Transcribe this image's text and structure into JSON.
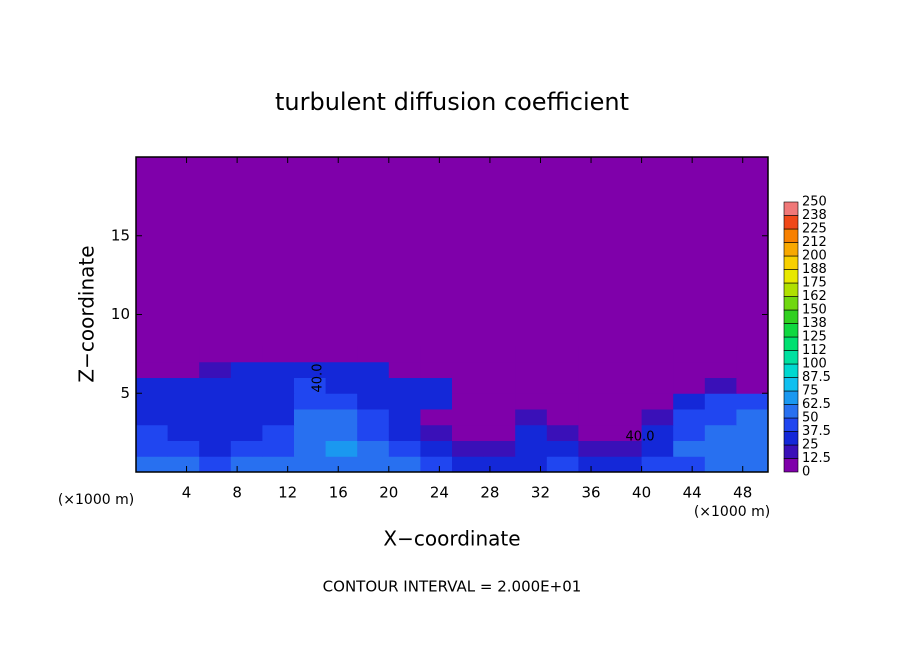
{
  "chart_data": {
    "type": "contour",
    "title": "turbulent diffusion coefficient",
    "xlabel": "X−coordinate",
    "ylabel": "Z−coordinate",
    "x_unit": "(×1000 m)",
    "footer": "CONTOUR INTERVAL = 2.000E+01",
    "xlim": [
      0,
      50
    ],
    "ylim": [
      0,
      20
    ],
    "xticks": [
      4,
      8,
      12,
      16,
      20,
      24,
      28,
      32,
      36,
      40,
      44,
      48
    ],
    "yticks": [
      5,
      10,
      15
    ],
    "x": [
      1.25,
      3.75,
      6.25,
      8.75,
      11.25,
      13.75,
      16.25,
      18.75,
      21.25,
      23.75,
      26.25,
      28.75,
      31.25,
      33.75,
      36.25,
      38.75,
      41.25,
      43.75,
      46.25,
      48.75
    ],
    "y": [
      0.5,
      1.5,
      2.5,
      3.5,
      4.5,
      5.5,
      6.5,
      7.5
    ],
    "z": [
      [
        55,
        50,
        45,
        50,
        55,
        60,
        60,
        55,
        50,
        45,
        35,
        30,
        35,
        40,
        30,
        30,
        40,
        45,
        55,
        60
      ],
      [
        45,
        40,
        35,
        40,
        45,
        60,
        65,
        50,
        40,
        30,
        20,
        15,
        30,
        35,
        20,
        15,
        35,
        50,
        55,
        60
      ],
      [
        40,
        35,
        30,
        35,
        40,
        55,
        60,
        45,
        35,
        15,
        5,
        5,
        25,
        15,
        5,
        5,
        25,
        45,
        50,
        55
      ],
      [
        35,
        30,
        30,
        30,
        35,
        50,
        55,
        40,
        30,
        5,
        5,
        5,
        15,
        5,
        5,
        5,
        15,
        40,
        45,
        50
      ],
      [
        35,
        30,
        30,
        30,
        35,
        45,
        45,
        35,
        30,
        25,
        5,
        5,
        5,
        5,
        5,
        5,
        5,
        30,
        40,
        45
      ],
      [
        25,
        30,
        30,
        30,
        35,
        40,
        35,
        30,
        30,
        25,
        5,
        5,
        5,
        5,
        5,
        5,
        5,
        5,
        15,
        5
      ],
      [
        5,
        5,
        15,
        25,
        30,
        35,
        30,
        30,
        5,
        5,
        5,
        5,
        5,
        5,
        5,
        5,
        5,
        5,
        5,
        5
      ],
      [
        5,
        5,
        5,
        5,
        5,
        10,
        5,
        5,
        5,
        5,
        5,
        5,
        5,
        5,
        5,
        5,
        5,
        5,
        5,
        5
      ]
    ],
    "levels": [
      0,
      12.5,
      25,
      37.5,
      50,
      62.5,
      75,
      87.5,
      100,
      112,
      125,
      138,
      150,
      162,
      175,
      188,
      200,
      212,
      225,
      238,
      250
    ],
    "colors": [
      "#7f00aa",
      "#3a10b8",
      "#1428d8",
      "#2046f0",
      "#2870f0",
      "#1a98f0",
      "#10c0f0",
      "#00d8d0",
      "#00e0a0",
      "#00e070",
      "#10d840",
      "#30d020",
      "#70d810",
      "#b0e000",
      "#e8e800",
      "#f8d000",
      "#f8a800",
      "#f88000",
      "#f04818",
      "#f07878"
    ],
    "contour_labels": [
      {
        "value": 40,
        "label": "40.0"
      },
      {
        "value": 40,
        "label": "40.0"
      }
    ]
  }
}
